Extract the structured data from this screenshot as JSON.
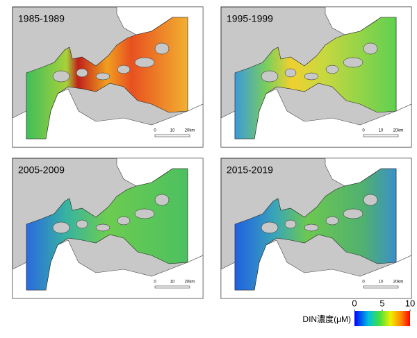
{
  "panels": [
    {
      "label": "1985-1989"
    },
    {
      "label": "1995-1999"
    },
    {
      "label": "2005-2009"
    },
    {
      "label": "2015-2019"
    }
  ],
  "scale_bar": {
    "labels": [
      "0",
      "10",
      "20km"
    ]
  },
  "colorbar": {
    "title": "DIN濃度(μM)",
    "range": [
      0,
      10
    ],
    "ticks": [
      0,
      5,
      10
    ]
  }
}
